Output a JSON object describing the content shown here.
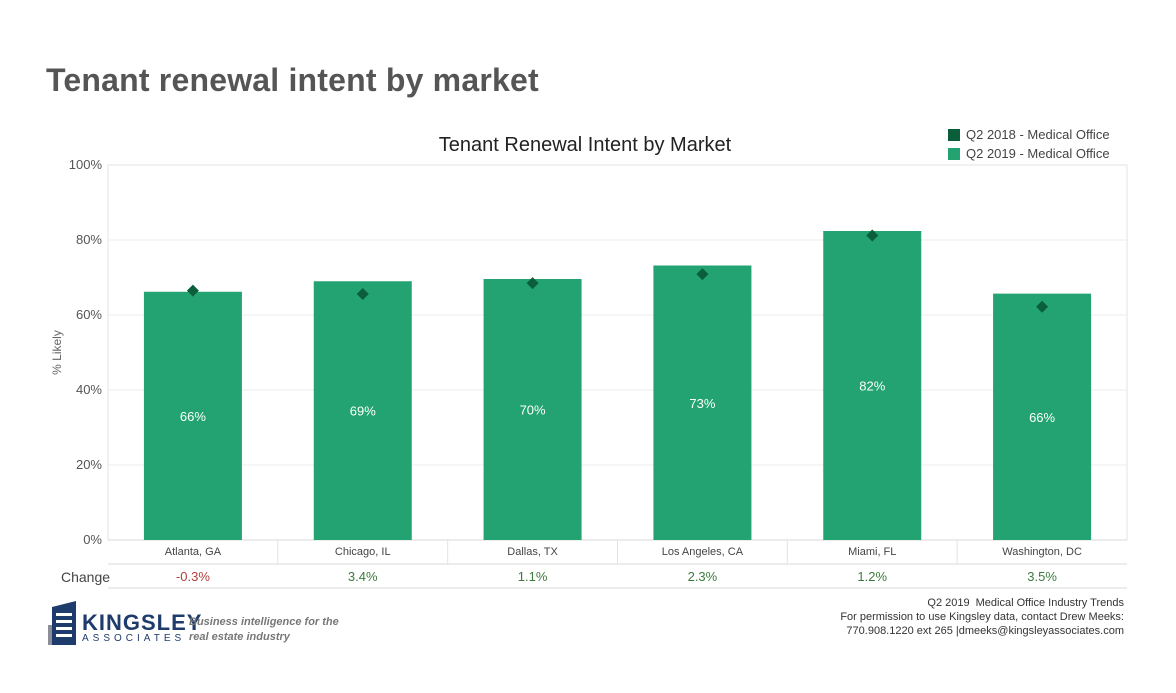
{
  "page_title": "Tenant renewal intent by market",
  "chart_data": {
    "type": "bar",
    "title": "Tenant Renewal Intent by Market",
    "ylabel": "% Likely",
    "xlabel": "",
    "ylim": [
      0,
      100
    ],
    "y_ticks": [
      "0%",
      "20%",
      "40%",
      "60%",
      "80%",
      "100%"
    ],
    "categories": [
      "Atlanta, GA",
      "Chicago, IL",
      "Dallas, TX",
      "Los Angeles, CA",
      "Miami, FL",
      "Washington, DC"
    ],
    "series": [
      {
        "name": "Q2 2018 - Medical Office",
        "marker": "diamond",
        "color": "#0b5e3a",
        "values": [
          66.5,
          65.6,
          68.5,
          70.9,
          81.2,
          62.2
        ]
      },
      {
        "name": "Q2 2019 - Medical Office",
        "marker": "bar",
        "color": "#22a371",
        "values": [
          66.2,
          69.0,
          69.6,
          73.2,
          82.4,
          65.7
        ]
      }
    ],
    "bar_labels": [
      "66%",
      "69%",
      "70%",
      "73%",
      "82%",
      "66%"
    ],
    "change_label": "Change",
    "change_values": [
      "-0.3%",
      "3.4%",
      "1.1%",
      "2.3%",
      "1.2%",
      "3.5%"
    ],
    "change_colors": [
      "#b0403e",
      "#3d7a3d",
      "#3d7a3d",
      "#3d7a3d",
      "#3d7a3d",
      "#3d7a3d"
    ],
    "grid": true,
    "legend_placement": "top-right"
  },
  "footer": {
    "period": "Q2 2019",
    "report_name": "Medical Office Industry Trends",
    "permission": "For permission to use Kingsley data, contact Drew Meeks:",
    "contact": "770.908.1220 ext 265 |dmeeks@kingsleyassociates.com",
    "logo_word": "KINGSLEY",
    "logo_sub": "ASSOCIATES",
    "tagline_1": "Business intelligence for the",
    "tagline_2": "real estate industry"
  },
  "colors": {
    "title": "#555555",
    "grid": "#e6e6e6",
    "logo": "#1f3b6b"
  }
}
